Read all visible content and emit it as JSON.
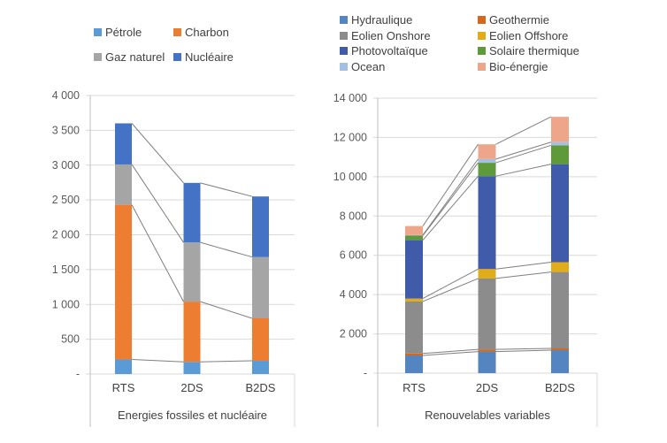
{
  "chart_data": [
    {
      "type": "bar",
      "stacked": true,
      "title": "",
      "xlabel": "Energies fossiles et nucléaire",
      "ylabel": "",
      "categories": [
        "RTS",
        "2DS",
        "B2DS"
      ],
      "ylim": [
        0,
        4000
      ],
      "yticks": [
        0,
        500,
        1000,
        1500,
        2000,
        2500,
        3000,
        3500,
        4000
      ],
      "ytick_labels": [
        "-",
        "500",
        "1 000",
        "1 500",
        "2 000",
        "2 500",
        "3 000",
        "3 500",
        "4 000"
      ],
      "grid": true,
      "legend_position": "top",
      "connector_lines": true,
      "series": [
        {
          "name": "Pétrole",
          "color": "#5B9BD5",
          "values": [
            210,
            175,
            190
          ]
        },
        {
          "name": "Charbon",
          "color": "#ED7D31",
          "values": [
            2220,
            865,
            610
          ]
        },
        {
          "name": "Gaz naturel",
          "color": "#A5A5A5",
          "values": [
            580,
            850,
            880
          ]
        },
        {
          "name": "Nucléaire",
          "color": "#4472C4",
          "values": [
            590,
            855,
            870
          ]
        }
      ]
    },
    {
      "type": "bar",
      "stacked": true,
      "title": "",
      "xlabel": "Renouvelables variables",
      "ylabel": "",
      "categories": [
        "RTS",
        "2DS",
        "B2DS"
      ],
      "ylim": [
        0,
        14000
      ],
      "yticks": [
        0,
        2000,
        4000,
        6000,
        8000,
        10000,
        12000,
        14000
      ],
      "ytick_labels": [
        "-",
        "2 000",
        "4 000",
        "6 000",
        "8 000",
        "10 000",
        "12 000",
        "14 000"
      ],
      "grid": true,
      "legend_position": "top",
      "connector_lines": true,
      "series": [
        {
          "name": "Hydraulique",
          "color": "#5585C0",
          "values": [
            900,
            1100,
            1170
          ]
        },
        {
          "name": "Geothermie",
          "color": "#D2691E",
          "values": [
            100,
            110,
            90
          ]
        },
        {
          "name": "Eolien Onshore",
          "color": "#8C8C8C",
          "values": [
            2650,
            3610,
            3890
          ]
        },
        {
          "name": "Eolien Offshore",
          "color": "#E0AC1A",
          "values": [
            150,
            480,
            500
          ]
        },
        {
          "name": "Photovoltaïque",
          "color": "#3F5BAA",
          "values": [
            2970,
            4730,
            4990
          ]
        },
        {
          "name": "Solaire thermique",
          "color": "#5E9A3A",
          "values": [
            230,
            680,
            960
          ]
        },
        {
          "name": "Ocean",
          "color": "#A3BFE3",
          "values": [
            30,
            190,
            160
          ]
        },
        {
          "name": "Bio-énergie",
          "color": "#EDA68A",
          "values": [
            460,
            750,
            1290
          ]
        }
      ]
    }
  ]
}
